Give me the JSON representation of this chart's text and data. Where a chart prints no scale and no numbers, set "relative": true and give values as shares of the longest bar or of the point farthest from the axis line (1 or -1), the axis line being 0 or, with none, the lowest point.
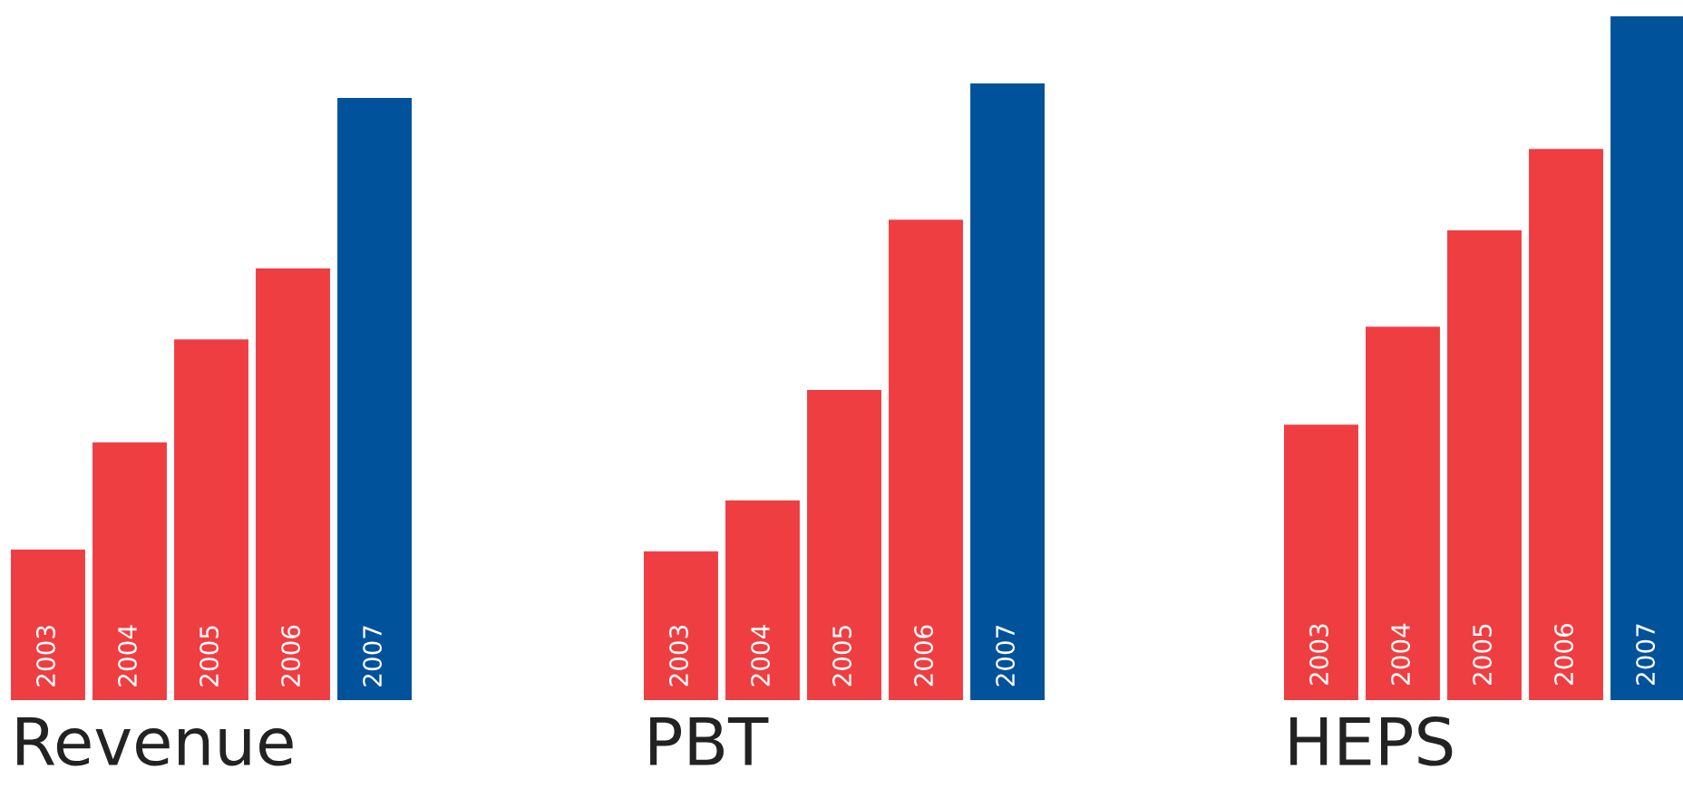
{
  "chart_data": [
    {
      "type": "bar",
      "title": "Revenue",
      "relative": true,
      "categories": [
        "2003",
        "2004",
        "2005",
        "2006",
        "2007"
      ],
      "values": [
        0.25,
        0.428,
        0.599,
        0.717,
        1
      ],
      "colors": [
        "#ef3e42",
        "#ef3e42",
        "#ef3e42",
        "#ef3e42",
        "#00529b"
      ]
    },
    {
      "type": "bar",
      "title": "PBT",
      "relative": true,
      "categories": [
        "2003",
        "2004",
        "2005",
        "2006",
        "2007"
      ],
      "values": [
        0.241,
        0.324,
        0.503,
        0.779,
        1
      ],
      "colors": [
        "#ef3e42",
        "#ef3e42",
        "#ef3e42",
        "#ef3e42",
        "#00529b"
      ]
    },
    {
      "type": "bar",
      "title": "HEPS",
      "relative": true,
      "categories": [
        "2003",
        "2004",
        "2005",
        "2006",
        "2007"
      ],
      "values": [
        0.403,
        0.546,
        0.687,
        0.806,
        1
      ],
      "colors": [
        "#ef3e42",
        "#ef3e42",
        "#ef3e42",
        "#ef3e42",
        "#00529b"
      ]
    }
  ]
}
